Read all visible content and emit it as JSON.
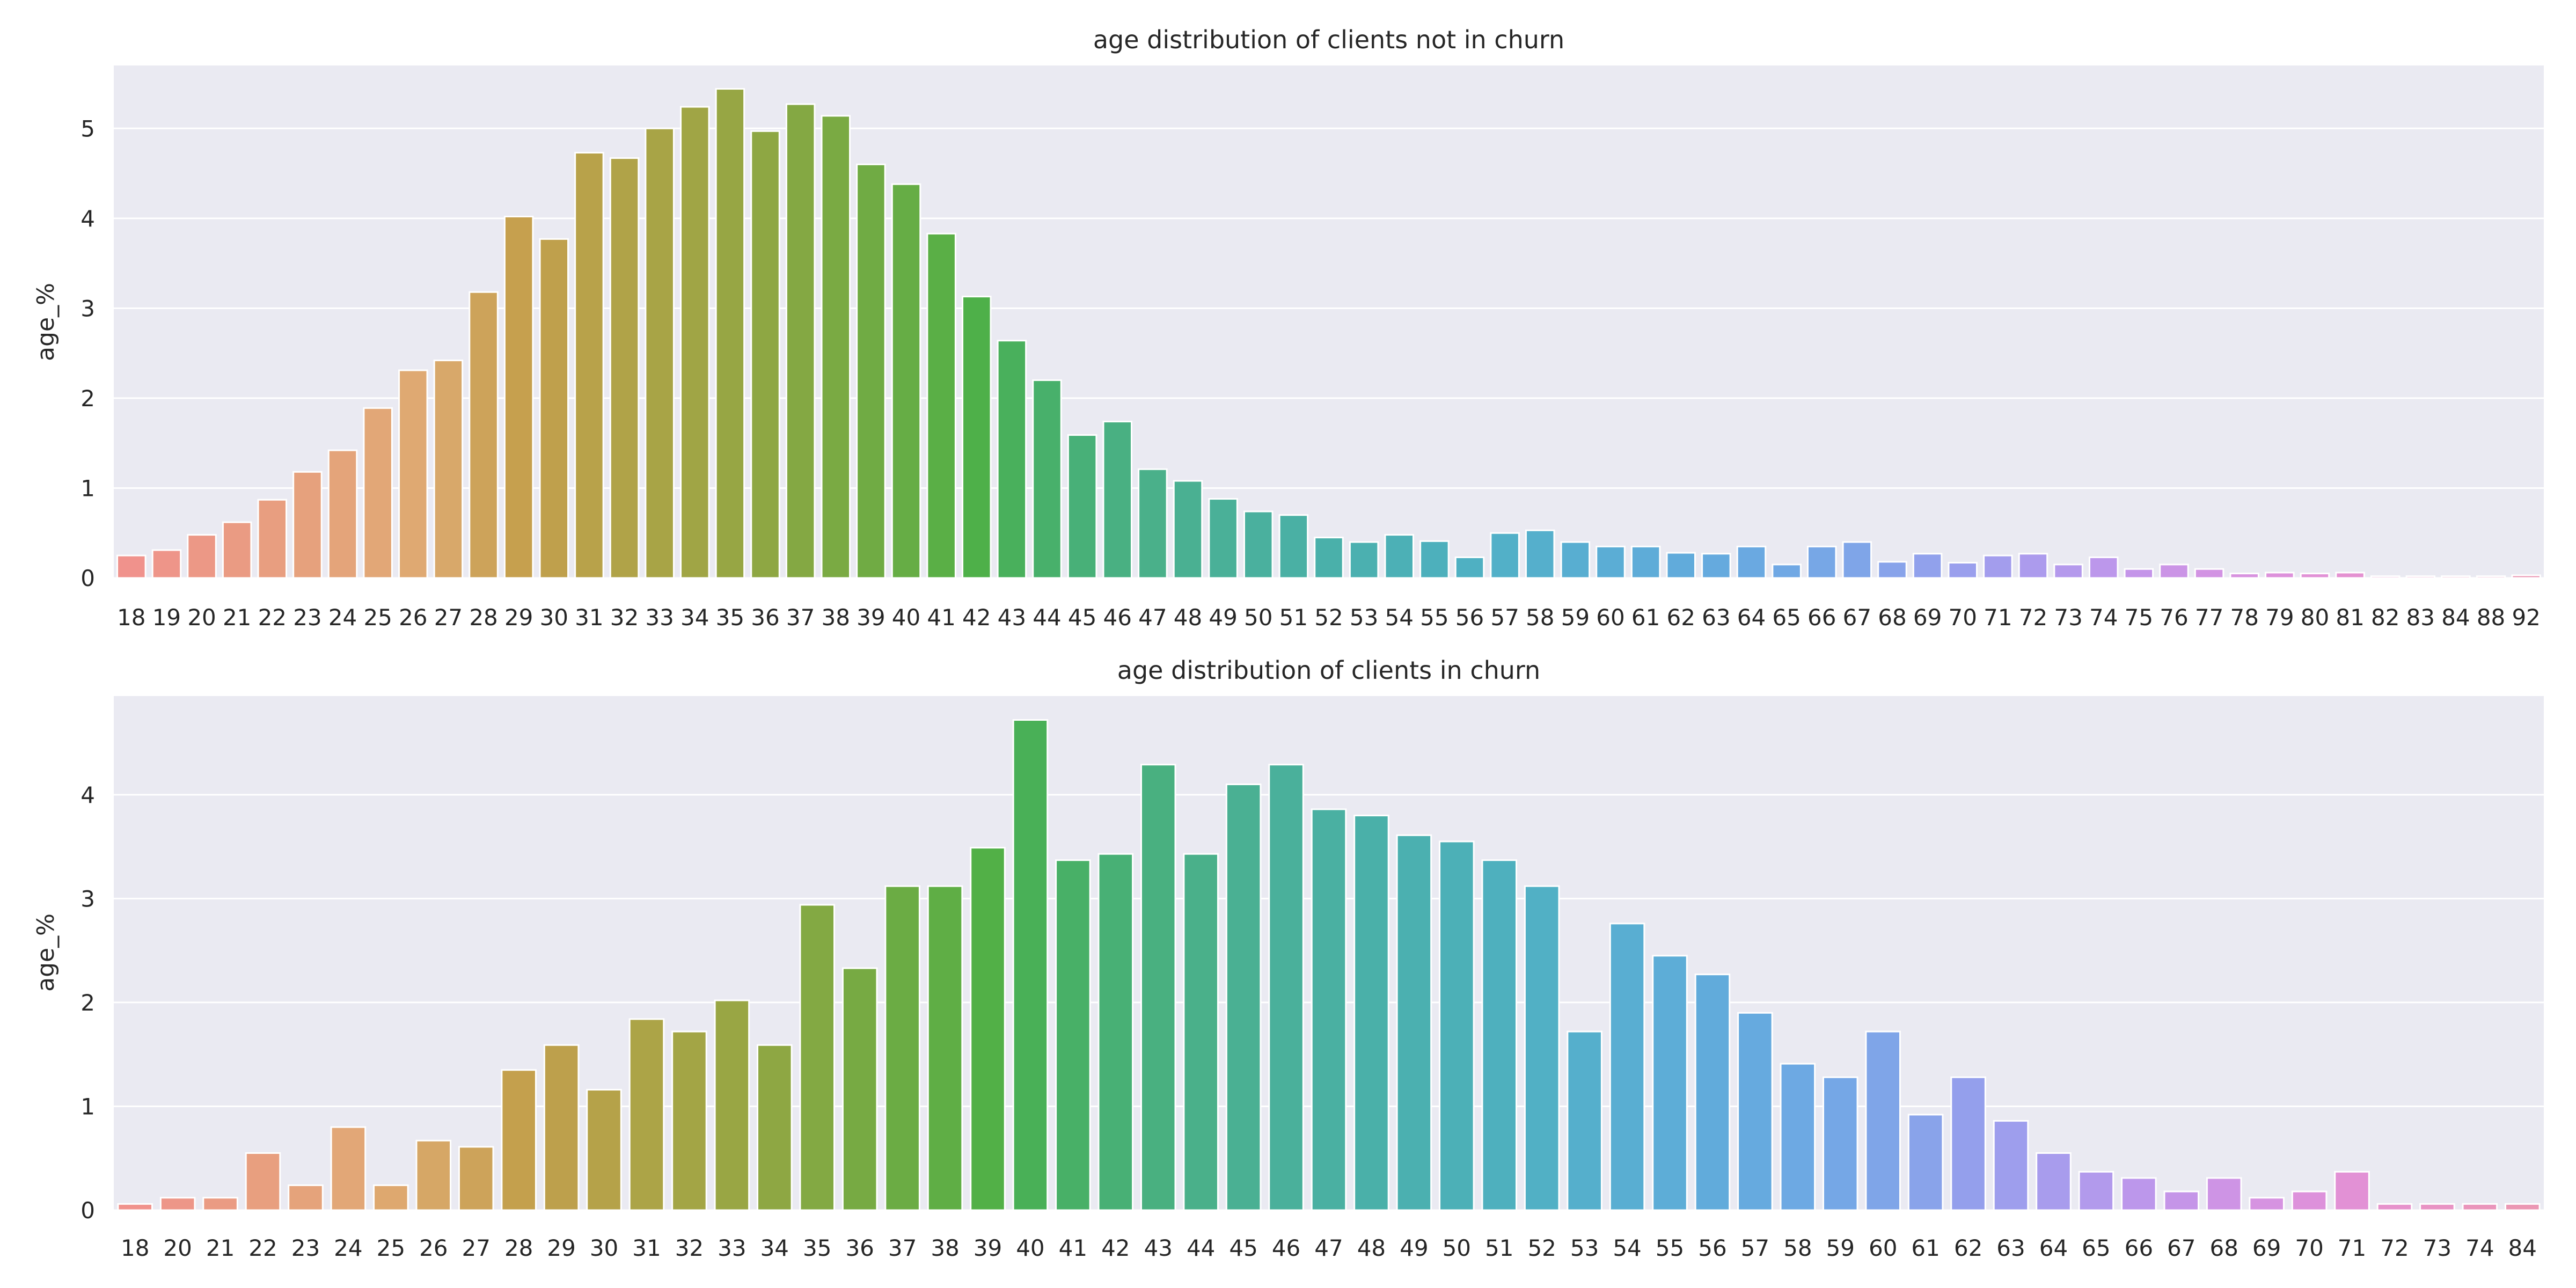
{
  "chart_data": [
    {
      "type": "bar",
      "title": "age distribution of clients not in churn",
      "xlabel": "",
      "ylabel": "age_%",
      "ylim": [
        0,
        5.7
      ],
      "yticks": [
        0,
        1,
        2,
        3,
        4,
        5
      ],
      "grid": true,
      "categories": [
        "18",
        "19",
        "20",
        "21",
        "22",
        "23",
        "24",
        "25",
        "26",
        "27",
        "28",
        "29",
        "30",
        "31",
        "32",
        "33",
        "34",
        "35",
        "36",
        "37",
        "38",
        "39",
        "40",
        "41",
        "42",
        "43",
        "44",
        "45",
        "46",
        "47",
        "48",
        "49",
        "50",
        "51",
        "52",
        "53",
        "54",
        "55",
        "56",
        "57",
        "58",
        "59",
        "60",
        "61",
        "62",
        "63",
        "64",
        "65",
        "66",
        "67",
        "68",
        "69",
        "70",
        "71",
        "72",
        "73",
        "74",
        "75",
        "76",
        "77",
        "78",
        "79",
        "80",
        "81",
        "82",
        "83",
        "84",
        "88",
        "92"
      ],
      "values": [
        0.25,
        0.31,
        0.48,
        0.62,
        0.87,
        1.18,
        1.42,
        1.89,
        2.31,
        2.42,
        3.18,
        4.02,
        3.77,
        4.73,
        4.67,
        5.0,
        5.24,
        5.44,
        4.97,
        5.27,
        5.14,
        4.6,
        4.38,
        3.83,
        3.13,
        2.64,
        2.2,
        1.59,
        1.74,
        1.21,
        1.08,
        0.88,
        0.74,
        0.7,
        0.45,
        0.4,
        0.48,
        0.41,
        0.23,
        0.5,
        0.53,
        0.4,
        0.35,
        0.35,
        0.28,
        0.27,
        0.35,
        0.15,
        0.35,
        0.4,
        0.18,
        0.27,
        0.17,
        0.25,
        0.27,
        0.15,
        0.23,
        0.1,
        0.15,
        0.1,
        0.05,
        0.06,
        0.05,
        0.06,
        0.02,
        0.02,
        0.02,
        0.02,
        0.03
      ],
      "colors": [
        "#f0928c",
        "#ee9589",
        "#ec9886",
        "#ea9b83",
        "#e89e80",
        "#e6a17d",
        "#e4a47a",
        "#e2a777",
        "#dfa972",
        "#d8a86a",
        "#cda35a",
        "#c6a04e",
        "#bfa04c",
        "#b8a24a",
        "#b0a348",
        "#a8a446",
        "#a0a545",
        "#97a644",
        "#8ea743",
        "#84a843",
        "#7aaa43",
        "#70ab44",
        "#66ad45",
        "#5aaf46",
        "#4eb049",
        "#49b05c",
        "#48b06b",
        "#48b078",
        "#49b082",
        "#4ab08a",
        "#4ab092",
        "#4ab098",
        "#4ab09e",
        "#4ab0a4",
        "#4ab0aa",
        "#4bb0b0",
        "#4cb0b6",
        "#4db0bc",
        "#4fb0c2",
        "#52b0c8",
        "#55afcc",
        "#58aed1",
        "#5badd5",
        "#5eacd8",
        "#61abdb",
        "#65aade",
        "#6aa9e1",
        "#70a8e4",
        "#77a7e6",
        "#7fa5e8",
        "#88a3ea",
        "#91a1ec",
        "#9a9fed",
        "#a39ded",
        "#ac9bed",
        "#b499ec",
        "#bc97eb",
        "#c495e9",
        "#cb94e6",
        "#d293e3",
        "#d892df",
        "#dd91db",
        "#e191d6",
        "#e491d1",
        "#e692cb",
        "#e893c5",
        "#e994bf",
        "#ea95b9",
        "#eb97b3"
      ]
    },
    {
      "type": "bar",
      "title": "age distribution of clients in churn",
      "xlabel": "",
      "ylabel": "age_%",
      "ylim": [
        0,
        4.95
      ],
      "yticks": [
        0,
        1,
        2,
        3,
        4
      ],
      "grid": true,
      "categories": [
        "18",
        "20",
        "21",
        "22",
        "23",
        "24",
        "25",
        "26",
        "27",
        "28",
        "29",
        "30",
        "31",
        "32",
        "33",
        "34",
        "35",
        "36",
        "37",
        "38",
        "39",
        "40",
        "41",
        "42",
        "43",
        "44",
        "45",
        "46",
        "47",
        "48",
        "49",
        "50",
        "51",
        "52",
        "53",
        "54",
        "55",
        "56",
        "57",
        "58",
        "59",
        "60",
        "61",
        "62",
        "63",
        "64",
        "65",
        "66",
        "67",
        "68",
        "69",
        "70",
        "71",
        "72",
        "73",
        "74",
        "84"
      ],
      "values": [
        0.06,
        0.12,
        0.12,
        0.55,
        0.24,
        0.8,
        0.24,
        0.67,
        0.61,
        1.35,
        1.59,
        1.16,
        1.84,
        1.72,
        2.02,
        1.59,
        2.94,
        2.33,
        3.12,
        3.12,
        3.49,
        4.72,
        3.37,
        3.43,
        4.29,
        3.43,
        4.1,
        4.29,
        3.86,
        3.8,
        3.61,
        3.55,
        3.37,
        3.12,
        1.72,
        2.76,
        2.45,
        2.27,
        1.9,
        1.41,
        1.28,
        1.72,
        0.92,
        1.28,
        0.86,
        0.55,
        0.37,
        0.31,
        0.18,
        0.31,
        0.12,
        0.18,
        0.37,
        0.06,
        0.06,
        0.06,
        0.06
      ],
      "colors": [
        "#f0928c",
        "#ed9688",
        "#ea9b83",
        "#e89f7f",
        "#e5a37b",
        "#e2a777",
        "#dea86f",
        "#d6a766",
        "#cda35a",
        "#c4a04d",
        "#bda04c",
        "#b5a249",
        "#aca447",
        "#a3a545",
        "#99a644",
        "#8ea743",
        "#83a943",
        "#77aa43",
        "#6bac44",
        "#5fae45",
        "#52b047",
        "#49b057",
        "#48b067",
        "#48b075",
        "#49b080",
        "#4ab08a",
        "#4ab093",
        "#4ab09b",
        "#4ab0a2",
        "#4ab0a9",
        "#4bb0b0",
        "#4cb0b7",
        "#4eb0be",
        "#51b0c5",
        "#55afcc",
        "#59aed2",
        "#5dadd7",
        "#61abdb",
        "#66aadf",
        "#6da9e3",
        "#75a7e6",
        "#7fa5e8",
        "#89a3ea",
        "#949fec",
        "#9e9eed",
        "#a89ced",
        "#b29aec",
        "#bc97eb",
        "#c595e8",
        "#ce94e5",
        "#d693e1",
        "#dd91db",
        "#e291d5",
        "#e692cc",
        "#e893c4",
        "#ea95bb",
        "#eb97b3"
      ]
    }
  ]
}
